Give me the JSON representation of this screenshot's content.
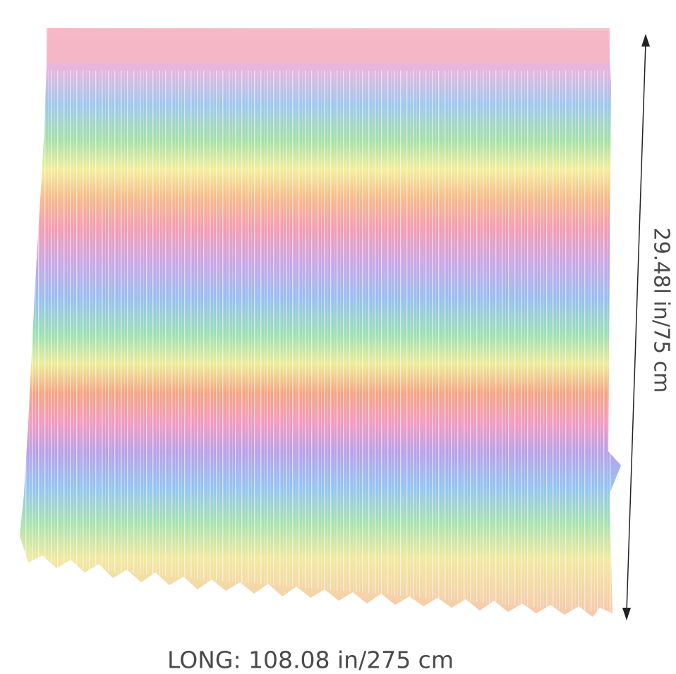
{
  "image": {
    "width_label": "LONG: 108.08 in/275 cm",
    "height_label": "29.48l in/75 cm"
  }
}
